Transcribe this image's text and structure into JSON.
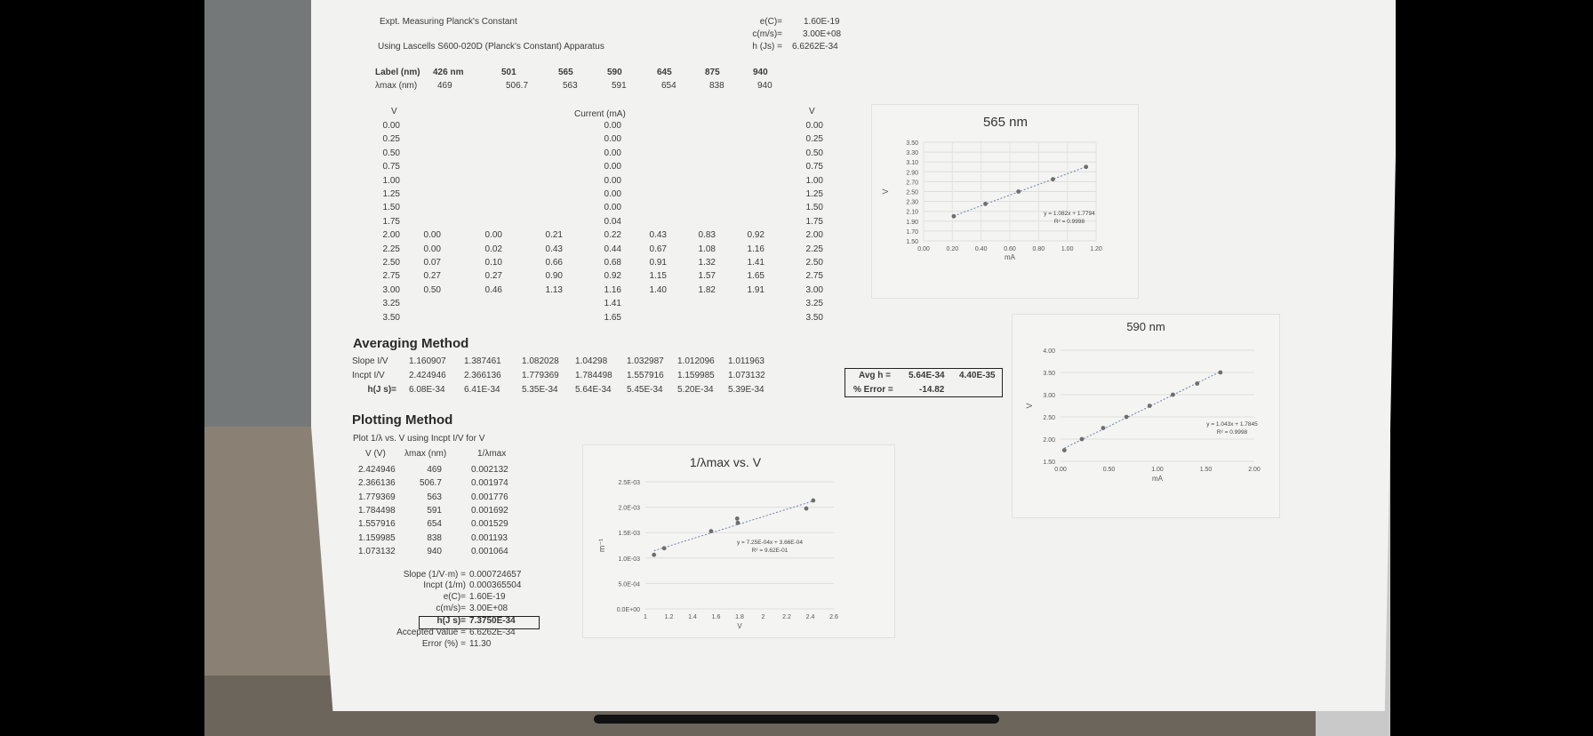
{
  "header": {
    "title": "Expt.  Measuring Planck's Constant",
    "apparatus": "Using Lascells S600-020D (Planck's Constant) Apparatus",
    "constants": [
      {
        "label": "e(C)=",
        "value": "1.60E-19"
      },
      {
        "label": "c(m/s)=",
        "value": "3.00E+08"
      },
      {
        "label": "h (Js) =",
        "value": "6.6262E-34"
      }
    ]
  },
  "wavelengths": {
    "label_row_title": "Label (nm)",
    "lmax_row_title": "λmax (nm)",
    "labels": [
      "426 nm",
      "501",
      "565",
      "590",
      "645",
      "875",
      "940"
    ],
    "lmax": [
      "469",
      "506.7",
      "563",
      "591",
      "654",
      "838",
      "940"
    ]
  },
  "current_table": {
    "v_header": "V",
    "current_header": "Current (mA)",
    "voltages": [
      "0.00",
      "0.25",
      "0.50",
      "0.75",
      "1.00",
      "1.25",
      "1.50",
      "1.75",
      "2.00",
      "2.25",
      "2.50",
      "2.75",
      "3.00",
      "3.25",
      "3.50"
    ],
    "col1": [
      "0.00",
      "0.00",
      "0.07",
      "0.27",
      "0.50"
    ],
    "col2": [
      "0.00",
      "0.02",
      "0.10",
      "0.27",
      "0.46"
    ],
    "col3": [
      "0.21",
      "0.43",
      "0.66",
      "0.90",
      "1.13"
    ],
    "col4": [
      "0.00",
      "0.00",
      "0.00",
      "0.00",
      "0.00",
      "0.00",
      "0.00",
      "0.04",
      "0.22",
      "0.44",
      "0.68",
      "0.92",
      "1.16",
      "1.41",
      "1.65"
    ],
    "col5": [
      "0.43",
      "0.67",
      "0.91",
      "1.15",
      "1.40"
    ],
    "col6": [
      "0.83",
      "1.08",
      "1.32",
      "1.57",
      "1.82"
    ],
    "col7": [
      "0.92",
      "1.16",
      "1.41",
      "1.65",
      "1.91"
    ]
  },
  "averaging": {
    "title": "Averaging Method",
    "rows": [
      {
        "label": "Slope I/V",
        "first": "1.160907",
        "values": [
          "1.387461",
          "1.082028",
          "1.04298",
          "1.032987",
          "1.012096",
          "1.011963"
        ]
      },
      {
        "label": "Incpt I/V",
        "first": "2.424946",
        "values": [
          "2.366136",
          "1.779369",
          "1.784498",
          "1.557916",
          "1.159985",
          "1.073132"
        ]
      },
      {
        "label": "h(J s)=",
        "first": "6.08E-34",
        "values": [
          "6.41E-34",
          "5.35E-34",
          "5.64E-34",
          "5.45E-34",
          "5.20E-34",
          "5.39E-34"
        ]
      }
    ],
    "avg_label": "Avg h =",
    "avg_value": "5.64E-34",
    "avg_sd": "4.40E-35",
    "err_label": "% Error =",
    "err_value": "-14.82"
  },
  "plotting": {
    "title": "Plotting Method",
    "subtitle": "Plot 1/λ vs. V using Incpt I/V for V",
    "col_headers": [
      "V (V)",
      "λmax (nm)",
      "1/λmax"
    ],
    "rows": [
      [
        "2.424946",
        "469",
        "0.002132"
      ],
      [
        "2.366136",
        "506.7",
        "0.001974"
      ],
      [
        "1.779369",
        "563",
        "0.001776"
      ],
      [
        "1.784498",
        "591",
        "0.001692"
      ],
      [
        "1.557916",
        "654",
        "0.001529"
      ],
      [
        "1.159985",
        "838",
        "0.001193"
      ],
      [
        "1.073132",
        "940",
        "0.001064"
      ]
    ],
    "results": [
      {
        "label": "Slope (1/V·m) =",
        "value": "0.000724657"
      },
      {
        "label": "Incpt (1/m)",
        "value": "0.000365504"
      },
      {
        "label": "e(C)=",
        "value": "1.60E-19"
      },
      {
        "label": "c(m/s)=",
        "value": "3.00E+08"
      },
      {
        "label": "h(J s)=",
        "value": "7.3750E-34"
      },
      {
        "label": "Accepted Value =",
        "value": "6.6262E-34"
      },
      {
        "label": "Error (%) =",
        "value": "11.30"
      }
    ]
  },
  "chart_data": [
    {
      "type": "scatter",
      "title": "565 nm",
      "xlabel": "mA",
      "ylabel": "V",
      "xlim": [
        0,
        1.2
      ],
      "ylim": [
        1.5,
        3.5
      ],
      "x_ticks": [
        "0.00",
        "0.20",
        "0.40",
        "0.60",
        "0.80",
        "1.00",
        "1.20"
      ],
      "y_ticks": [
        "1.50",
        "1.70",
        "1.90",
        "2.10",
        "2.30",
        "2.50",
        "2.70",
        "2.90",
        "3.10",
        "3.30",
        "3.50"
      ],
      "x": [
        0.21,
        0.43,
        0.66,
        0.9,
        1.13
      ],
      "y": [
        2.0,
        2.25,
        2.5,
        2.75,
        3.0
      ],
      "equation": "y = 1.082x + 1.7794",
      "r2": "R² = 0.9998"
    },
    {
      "type": "scatter",
      "title": "590 nm",
      "xlabel": "mA",
      "ylabel": "V",
      "xlim": [
        0,
        2.0
      ],
      "ylim": [
        1.5,
        4.0
      ],
      "x_ticks": [
        "0.00",
        "0.50",
        "1.00",
        "1.50",
        "2.00"
      ],
      "y_ticks": [
        "1.50",
        "2.00",
        "2.50",
        "3.00",
        "3.50",
        "4.00"
      ],
      "x": [
        0.04,
        0.22,
        0.44,
        0.68,
        0.92,
        1.16,
        1.41,
        1.65
      ],
      "y": [
        1.75,
        2.0,
        2.25,
        2.5,
        2.75,
        3.0,
        3.25,
        3.5
      ],
      "equation": "y = 1.043x + 1.7845",
      "r2": "R² = 0.9998"
    },
    {
      "type": "scatter",
      "title": "1/λmax vs. V",
      "xlabel": "V",
      "ylabel": "m⁻¹",
      "xlim": [
        1,
        2.6
      ],
      "ylim": [
        0,
        0.0025
      ],
      "x_ticks": [
        "1",
        "1.2",
        "1.4",
        "1.6",
        "1.8",
        "2",
        "2.2",
        "2.4",
        "2.6"
      ],
      "y_ticks": [
        "0.0E+00",
        "5.0E-04",
        "1.0E-03",
        "1.5E-03",
        "2.0E-03",
        "2.5E-03"
      ],
      "x": [
        2.424946,
        2.366136,
        1.779369,
        1.784498,
        1.557916,
        1.159985,
        1.073132
      ],
      "y": [
        0.002132,
        0.001974,
        0.001776,
        0.001692,
        0.001529,
        0.001193,
        0.001064
      ],
      "equation": "y = 7.25E-04x + 3.66E-04",
      "r2": "R² = 9.62E-01"
    }
  ]
}
